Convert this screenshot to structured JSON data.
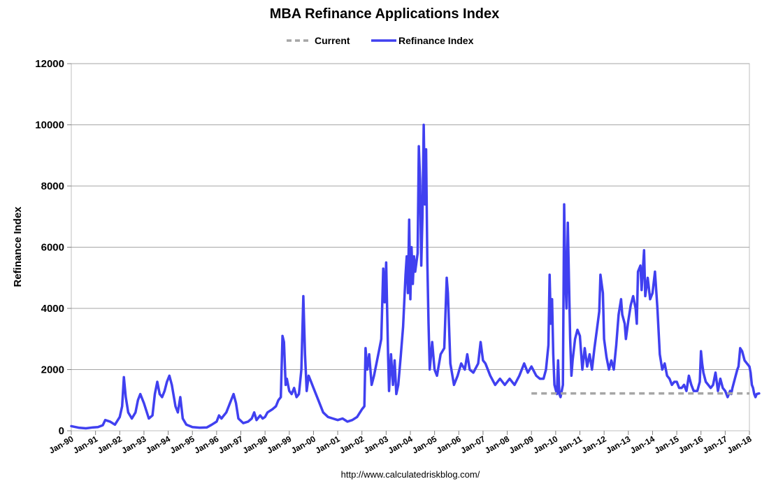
{
  "chart_data": {
    "type": "line",
    "title": "MBA Refinance Applications Index",
    "xlabel": "",
    "ylabel": "Refinance Index",
    "ylim": [
      0,
      12000
    ],
    "yticks": [
      0,
      2000,
      4000,
      6000,
      8000,
      10000,
      12000
    ],
    "xlim": [
      1990,
      2018
    ],
    "xtick_labels": [
      "Jan-90",
      "Jan-91",
      "Jan-92",
      "Jan-93",
      "Jan-94",
      "Jan-95",
      "Jan-96",
      "Jan-97",
      "Jan-98",
      "Jan-99",
      "Jan-00",
      "Jan-01",
      "Jan-02",
      "Jan-03",
      "Jan-04",
      "Jan-05",
      "Jan-06",
      "Jan-07",
      "Jan-08",
      "Jan-09",
      "Jan-10",
      "Jan-11",
      "Jan-12",
      "Jan-13",
      "Jan-14",
      "Jan-15",
      "Jan-16",
      "Jan-17",
      "Jan-18"
    ],
    "grid": "horizontal",
    "legend": "top-center",
    "source_text": "http://www.calculatedriskblog.com/",
    "series": [
      {
        "name": "Current",
        "style": "dashed",
        "color": "#a6a6a6",
        "points": [
          [
            2009.0,
            1220
          ],
          [
            2018.0,
            1220
          ]
        ]
      },
      {
        "name": "Refinance Index",
        "style": "solid",
        "color": "#4040f0",
        "points": [
          [
            1990.0,
            150
          ],
          [
            1990.3,
            100
          ],
          [
            1990.6,
            80
          ],
          [
            1990.9,
            110
          ],
          [
            1991.1,
            120
          ],
          [
            1991.3,
            180
          ],
          [
            1991.4,
            350
          ],
          [
            1991.6,
            300
          ],
          [
            1991.8,
            200
          ],
          [
            1992.0,
            450
          ],
          [
            1992.1,
            800
          ],
          [
            1992.17,
            1750
          ],
          [
            1992.25,
            1100
          ],
          [
            1992.35,
            600
          ],
          [
            1992.5,
            400
          ],
          [
            1992.65,
            600
          ],
          [
            1992.75,
            1000
          ],
          [
            1992.85,
            1200
          ],
          [
            1993.0,
            900
          ],
          [
            1993.2,
            400
          ],
          [
            1993.35,
            500
          ],
          [
            1993.45,
            1200
          ],
          [
            1993.55,
            1600
          ],
          [
            1993.65,
            1200
          ],
          [
            1993.75,
            1100
          ],
          [
            1993.85,
            1300
          ],
          [
            1993.95,
            1600
          ],
          [
            1994.05,
            1800
          ],
          [
            1994.15,
            1500
          ],
          [
            1994.3,
            800
          ],
          [
            1994.4,
            600
          ],
          [
            1994.5,
            1100
          ],
          [
            1994.6,
            400
          ],
          [
            1994.75,
            200
          ],
          [
            1995.0,
            120
          ],
          [
            1995.3,
            100
          ],
          [
            1995.6,
            110
          ],
          [
            1995.8,
            200
          ],
          [
            1996.0,
            300
          ],
          [
            1996.1,
            500
          ],
          [
            1996.2,
            400
          ],
          [
            1996.3,
            500
          ],
          [
            1996.4,
            600
          ],
          [
            1996.5,
            800
          ],
          [
            1996.6,
            1000
          ],
          [
            1996.7,
            1200
          ],
          [
            1996.8,
            900
          ],
          [
            1996.9,
            400
          ],
          [
            1997.1,
            250
          ],
          [
            1997.3,
            300
          ],
          [
            1997.45,
            400
          ],
          [
            1997.55,
            600
          ],
          [
            1997.65,
            350
          ],
          [
            1997.8,
            500
          ],
          [
            1997.9,
            400
          ],
          [
            1998.0,
            450
          ],
          [
            1998.1,
            600
          ],
          [
            1998.3,
            700
          ],
          [
            1998.45,
            800
          ],
          [
            1998.55,
            1000
          ],
          [
            1998.65,
            1100
          ],
          [
            1998.72,
            3100
          ],
          [
            1998.78,
            2900
          ],
          [
            1998.85,
            1500
          ],
          [
            1998.9,
            1700
          ],
          [
            1999.0,
            1300
          ],
          [
            1999.1,
            1200
          ],
          [
            1999.2,
            1400
          ],
          [
            1999.3,
            1100
          ],
          [
            1999.4,
            1200
          ],
          [
            1999.5,
            2000
          ],
          [
            1999.58,
            4400
          ],
          [
            1999.65,
            2500
          ],
          [
            1999.72,
            1300
          ],
          [
            1999.8,
            1800
          ],
          [
            1999.9,
            1600
          ],
          [
            2000.0,
            1400
          ],
          [
            2000.2,
            1000
          ],
          [
            2000.4,
            600
          ],
          [
            2000.6,
            450
          ],
          [
            2000.8,
            400
          ],
          [
            2001.0,
            350
          ],
          [
            2001.2,
            400
          ],
          [
            2001.4,
            300
          ],
          [
            2001.6,
            350
          ],
          [
            2001.8,
            450
          ],
          [
            2002.0,
            700
          ],
          [
            2002.1,
            800
          ],
          [
            2002.15,
            2700
          ],
          [
            2002.22,
            2000
          ],
          [
            2002.3,
            2500
          ],
          [
            2002.4,
            1500
          ],
          [
            2002.5,
            1800
          ],
          [
            2002.6,
            2200
          ],
          [
            2002.7,
            2600
          ],
          [
            2002.8,
            3000
          ],
          [
            2002.88,
            5300
          ],
          [
            2002.94,
            4200
          ],
          [
            2003.0,
            5500
          ],
          [
            2003.08,
            2500
          ],
          [
            2003.12,
            1300
          ],
          [
            2003.2,
            2500
          ],
          [
            2003.28,
            1500
          ],
          [
            2003.35,
            2300
          ],
          [
            2003.42,
            1200
          ],
          [
            2003.5,
            1500
          ],
          [
            2003.6,
            2400
          ],
          [
            2003.7,
            3400
          ],
          [
            2003.8,
            5100
          ],
          [
            2003.85,
            5700
          ],
          [
            2003.9,
            4500
          ],
          [
            2003.95,
            6900
          ],
          [
            2004.0,
            4300
          ],
          [
            2004.05,
            6000
          ],
          [
            2004.1,
            4800
          ],
          [
            2004.15,
            5700
          ],
          [
            2004.2,
            5200
          ],
          [
            2004.3,
            5800
          ],
          [
            2004.35,
            9300
          ],
          [
            2004.4,
            8200
          ],
          [
            2004.45,
            5400
          ],
          [
            2004.5,
            7000
          ],
          [
            2004.55,
            10000
          ],
          [
            2004.6,
            7400
          ],
          [
            2004.65,
            9200
          ],
          [
            2004.7,
            5500
          ],
          [
            2004.75,
            3500
          ],
          [
            2004.8,
            2000
          ],
          [
            2004.9,
            2900
          ],
          [
            2005.0,
            2000
          ],
          [
            2005.1,
            1800
          ],
          [
            2005.25,
            2500
          ],
          [
            2005.4,
            2700
          ],
          [
            2005.5,
            5000
          ],
          [
            2005.55,
            4500
          ],
          [
            2005.65,
            2200
          ],
          [
            2005.8,
            1500
          ],
          [
            2005.95,
            1800
          ],
          [
            2006.1,
            2200
          ],
          [
            2006.25,
            2000
          ],
          [
            2006.35,
            2500
          ],
          [
            2006.45,
            2000
          ],
          [
            2006.6,
            1900
          ],
          [
            2006.8,
            2200
          ],
          [
            2006.9,
            2900
          ],
          [
            2007.0,
            2300
          ],
          [
            2007.1,
            2200
          ],
          [
            2007.3,
            1800
          ],
          [
            2007.5,
            1500
          ],
          [
            2007.7,
            1700
          ],
          [
            2007.9,
            1500
          ],
          [
            2008.1,
            1700
          ],
          [
            2008.3,
            1500
          ],
          [
            2008.5,
            1800
          ],
          [
            2008.7,
            2200
          ],
          [
            2008.85,
            1900
          ],
          [
            2009.0,
            2100
          ],
          [
            2009.2,
            1800
          ],
          [
            2009.35,
            1700
          ],
          [
            2009.5,
            1700
          ],
          [
            2009.6,
            2000
          ],
          [
            2009.7,
            2800
          ],
          [
            2009.75,
            5100
          ],
          [
            2009.8,
            3500
          ],
          [
            2009.85,
            4300
          ],
          [
            2009.9,
            2500
          ],
          [
            2009.95,
            1500
          ],
          [
            2010.05,
            1200
          ],
          [
            2010.1,
            2300
          ],
          [
            2010.15,
            1200
          ],
          [
            2010.2,
            1100
          ],
          [
            2010.3,
            1500
          ],
          [
            2010.35,
            7400
          ],
          [
            2010.4,
            5000
          ],
          [
            2010.45,
            4000
          ],
          [
            2010.5,
            6800
          ],
          [
            2010.55,
            4900
          ],
          [
            2010.6,
            3000
          ],
          [
            2010.65,
            1800
          ],
          [
            2010.7,
            2300
          ],
          [
            2010.8,
            3000
          ],
          [
            2010.9,
            3300
          ],
          [
            2011.0,
            3100
          ],
          [
            2011.1,
            2000
          ],
          [
            2011.2,
            2700
          ],
          [
            2011.3,
            2100
          ],
          [
            2011.4,
            2500
          ],
          [
            2011.5,
            2000
          ],
          [
            2011.6,
            2700
          ],
          [
            2011.7,
            3300
          ],
          [
            2011.8,
            3900
          ],
          [
            2011.85,
            5100
          ],
          [
            2011.95,
            4500
          ],
          [
            2012.0,
            3000
          ],
          [
            2012.1,
            2400
          ],
          [
            2012.2,
            2000
          ],
          [
            2012.3,
            2300
          ],
          [
            2012.4,
            2000
          ],
          [
            2012.5,
            2800
          ],
          [
            2012.6,
            3800
          ],
          [
            2012.7,
            4300
          ],
          [
            2012.75,
            3800
          ],
          [
            2012.85,
            3500
          ],
          [
            2012.9,
            3000
          ],
          [
            2013.0,
            3600
          ],
          [
            2013.1,
            4100
          ],
          [
            2013.2,
            4400
          ],
          [
            2013.3,
            4000
          ],
          [
            2013.35,
            3500
          ],
          [
            2013.4,
            5200
          ],
          [
            2013.5,
            5400
          ],
          [
            2013.55,
            4600
          ],
          [
            2013.65,
            5900
          ],
          [
            2013.7,
            4400
          ],
          [
            2013.8,
            5000
          ],
          [
            2013.9,
            4300
          ],
          [
            2014.0,
            4500
          ],
          [
            2014.1,
            5200
          ],
          [
            2014.2,
            4000
          ],
          [
            2014.3,
            2500
          ],
          [
            2014.4,
            2000
          ],
          [
            2014.5,
            2200
          ],
          [
            2014.6,
            1800
          ],
          [
            2014.7,
            1700
          ],
          [
            2014.8,
            1500
          ],
          [
            2014.9,
            1600
          ],
          [
            2015.0,
            1600
          ],
          [
            2015.1,
            1400
          ],
          [
            2015.2,
            1400
          ],
          [
            2015.3,
            1500
          ],
          [
            2015.4,
            1300
          ],
          [
            2015.5,
            1800
          ],
          [
            2015.6,
            1500
          ],
          [
            2015.7,
            1300
          ],
          [
            2015.85,
            1300
          ],
          [
            2015.95,
            1600
          ],
          [
            2016.0,
            2600
          ],
          [
            2016.05,
            2200
          ],
          [
            2016.1,
            1900
          ],
          [
            2016.2,
            1600
          ],
          [
            2016.3,
            1500
          ],
          [
            2016.4,
            1400
          ],
          [
            2016.5,
            1500
          ],
          [
            2016.6,
            1900
          ],
          [
            2016.7,
            1300
          ],
          [
            2016.8,
            1700
          ],
          [
            2016.9,
            1400
          ],
          [
            2017.0,
            1300
          ],
          [
            2017.05,
            1200
          ],
          [
            2017.1,
            1100
          ],
          [
            2017.15,
            1200
          ],
          [
            2017.2,
            1300
          ],
          [
            2017.25,
            1200
          ],
          [
            2017.3,
            1400
          ],
          [
            2017.4,
            1700
          ],
          [
            2017.5,
            2000
          ],
          [
            2017.55,
            2100
          ],
          [
            2017.62,
            2700
          ],
          [
            2017.7,
            2600
          ],
          [
            2017.8,
            2300
          ],
          [
            2017.9,
            2200
          ],
          [
            2018.0,
            2100
          ],
          [
            2018.05,
            1900
          ],
          [
            2018.1,
            1500
          ],
          [
            2018.15,
            1400
          ],
          [
            2018.2,
            1200
          ],
          [
            2018.25,
            1100
          ],
          [
            2018.3,
            1200
          ],
          [
            2018.4,
            1220
          ]
        ]
      }
    ]
  }
}
